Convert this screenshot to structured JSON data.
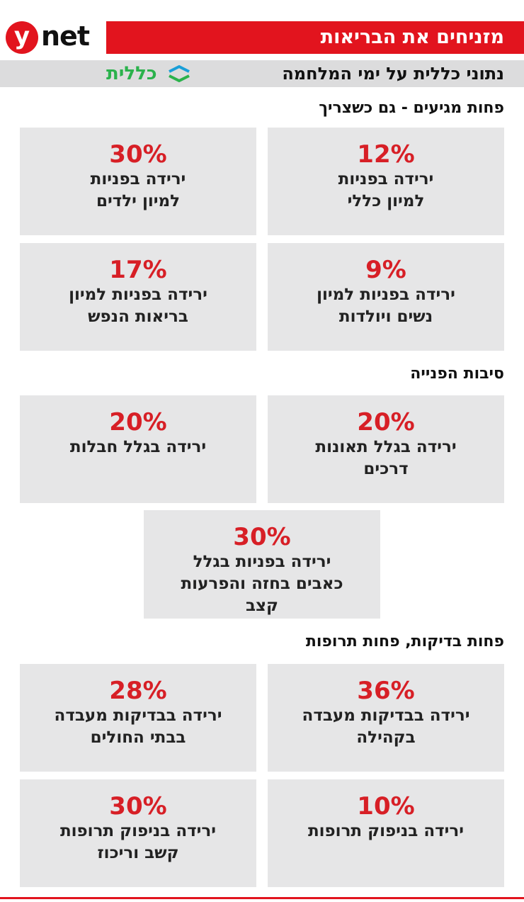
{
  "header": {
    "logo_y": "y",
    "logo_net": "net",
    "title": "מזניחים את הבריאות",
    "subtitle": "נתוני כללית על ימי המלחמה",
    "brand": "כללית"
  },
  "sections": [
    {
      "heading": "פחות מגיעים - גם כשצריך",
      "cards": [
        {
          "value": "12%",
          "lines": [
            "ירידה בפניות",
            "למיון כללי"
          ]
        },
        {
          "value": "30%",
          "lines": [
            "ירידה בפניות",
            "למיון ילדים"
          ]
        },
        {
          "value": "9%",
          "lines": [
            "ירידה בפניות למיון",
            "נשים ויולדות"
          ]
        },
        {
          "value": "17%",
          "lines": [
            "ירידה בפניות למיון",
            "בריאות הנפש"
          ]
        }
      ]
    },
    {
      "heading": "סיבות הפנייה",
      "cards": [
        {
          "value": "20%",
          "lines": [
            "ירידה בגלל תאונות",
            "דרכים"
          ]
        },
        {
          "value": "20%",
          "lines": [
            "ירידה בגלל חבלות"
          ]
        },
        {
          "value": "30%",
          "lines": [
            "ירידה בפניות בגלל",
            "כאבים בחזה והפרעות",
            "קצב"
          ]
        }
      ]
    },
    {
      "heading": "פחות בדיקות, פחות תרופות",
      "cards": [
        {
          "value": "36%",
          "lines": [
            "ירידה בבדיקות מעבדה",
            "בקהילה"
          ]
        },
        {
          "value": "28%",
          "lines": [
            "ירידה בבדיקות מעבדה",
            "בבתי החולים"
          ]
        },
        {
          "value": "10%",
          "lines": [
            "ירידה בניפוק תרופות"
          ]
        },
        {
          "value": "30%",
          "lines": [
            "ירידה בניפוק תרופות",
            "קשב וריכוז"
          ]
        }
      ]
    }
  ]
}
